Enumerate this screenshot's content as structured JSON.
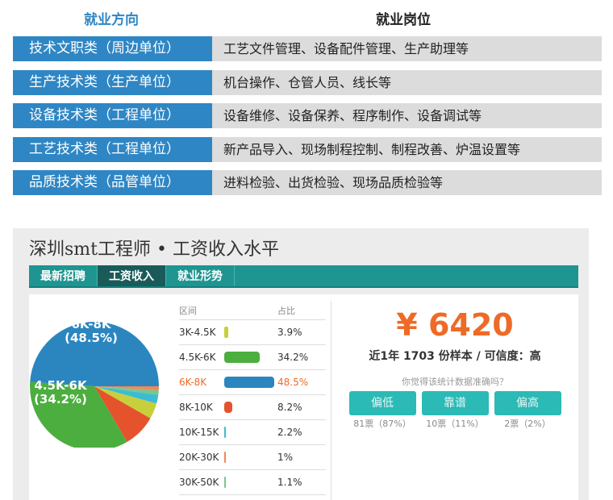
{
  "top_table": {
    "header_direction": "就业方向",
    "header_position": "就业岗位",
    "rows": [
      {
        "direction": "技术文职类（周边单位）",
        "positions": "工艺文件管理、设备配件管理、生产助理等"
      },
      {
        "direction": "生产技术类（生产单位）",
        "positions": "机台操作、仓管人员、线长等"
      },
      {
        "direction": "设备技术类（工程单位）",
        "positions": "设备维修、设备保养、程序制作、设备调试等"
      },
      {
        "direction": "工艺技术类（工程单位）",
        "positions": "新产品导入、现场制程控制、制程改善、炉温设置等"
      },
      {
        "direction": "品质技术类（品管单位）",
        "positions": "进料检验、出货检验、现场品质检验等"
      }
    ]
  },
  "salary_panel": {
    "title": "深圳smt工程师 • 工资收入水平",
    "tabs": [
      {
        "label": "最新招聘"
      },
      {
        "label": "工资收入",
        "active": true
      },
      {
        "label": "就业形势"
      }
    ],
    "table_headers": {
      "range": "区间",
      "ratio": "占比"
    },
    "highlight_color": "#ee6a26",
    "price": "¥ 6420",
    "sample_text": "近1年 1703 份样本 / 可信度：高",
    "question": "你觉得该统计数据准确吗？",
    "vote_buttons": [
      {
        "label": "偏低",
        "votes": "81票（87%）"
      },
      {
        "label": "靠谱",
        "votes": "10票（11%）"
      },
      {
        "label": "偏高",
        "votes": "2票（2%）"
      }
    ]
  },
  "chart_data": {
    "type": "pie",
    "categories": [
      "3K-4.5K",
      "4.5K-6K",
      "6K-8K",
      "8K-10K",
      "10K-15K",
      "20K-30K",
      "30K-50K"
    ],
    "values": [
      3.9,
      34.2,
      48.5,
      8.2,
      2.2,
      1,
      1.1
    ],
    "labels": [
      "3.9%",
      "34.2%",
      "48.5%",
      "8.2%",
      "2.2%",
      "1%",
      "1.1%"
    ],
    "colors": [
      "#c8cf3c",
      "#4cae3f",
      "#2b86c0",
      "#e5532d",
      "#3cbcd4",
      "#ef8a5a",
      "#7cc58a"
    ],
    "highlighted": "6K-8K",
    "slice_labels": [
      {
        "category": "6K-8K",
        "line1": "6K-8K",
        "line2": "(48.5%)"
      },
      {
        "category": "4.5K-6K",
        "line1": "4.5K-6K",
        "line2": "(34.2%)"
      }
    ]
  }
}
